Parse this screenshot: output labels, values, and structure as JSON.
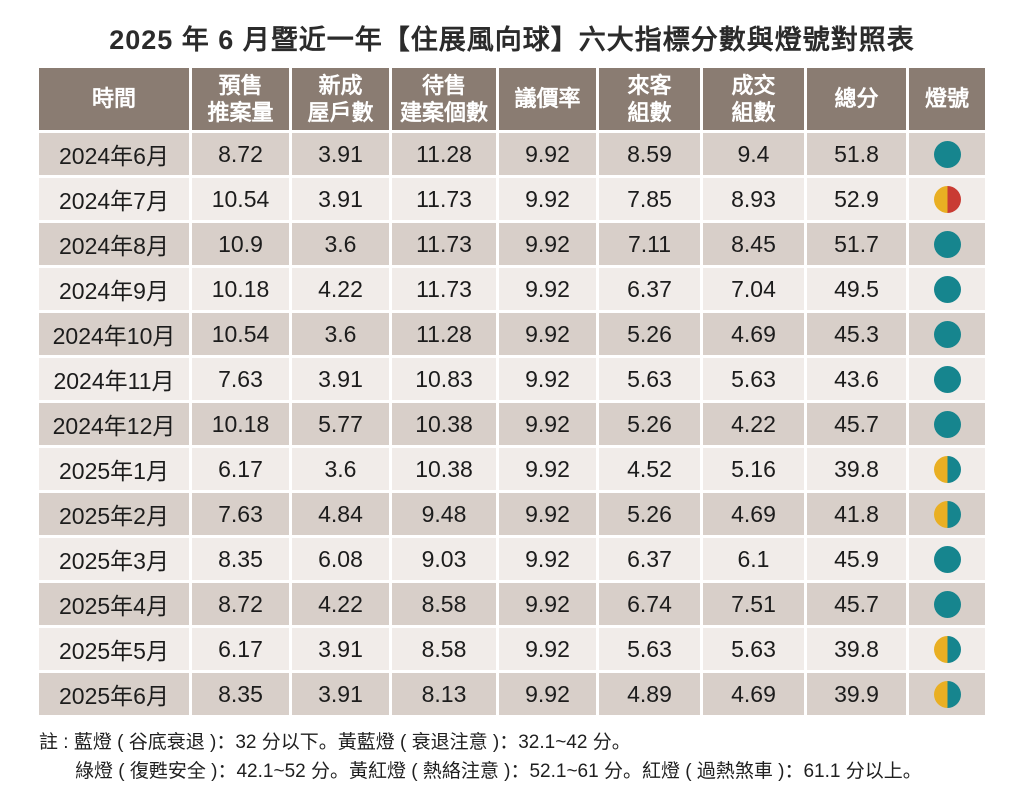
{
  "chart_data": {
    "type": "table",
    "title": "2025 年 6 月暨近一年【住展風向球】六大指標分數與燈號對照表",
    "columns": [
      "時間",
      "預售推案量",
      "新成屋戶數",
      "待售建案個數",
      "議價率",
      "來客組數",
      "成交組數",
      "總分",
      "燈號"
    ],
    "column_header_lines": [
      [
        "時間"
      ],
      [
        "預售",
        "推案量"
      ],
      [
        "新成",
        "屋戶數"
      ],
      [
        "待售",
        "建案個數"
      ],
      [
        "議價率"
      ],
      [
        "來客",
        "組數"
      ],
      [
        "成交",
        "組數"
      ],
      [
        "總分"
      ],
      [
        "燈號"
      ]
    ],
    "rows": [
      {
        "time": "2024年6月",
        "values": [
          8.72,
          3.91,
          11.28,
          9.92,
          8.59,
          9.4,
          51.8
        ],
        "light": "green"
      },
      {
        "time": "2024年7月",
        "values": [
          10.54,
          3.91,
          11.73,
          9.92,
          7.85,
          8.93,
          52.9
        ],
        "light": "yellow_red"
      },
      {
        "time": "2024年8月",
        "values": [
          10.9,
          3.6,
          11.73,
          9.92,
          7.11,
          8.45,
          51.7
        ],
        "light": "green"
      },
      {
        "time": "2024年9月",
        "values": [
          10.18,
          4.22,
          11.73,
          9.92,
          6.37,
          7.04,
          49.5
        ],
        "light": "green"
      },
      {
        "time": "2024年10月",
        "values": [
          10.54,
          3.6,
          11.28,
          9.92,
          5.26,
          4.69,
          45.3
        ],
        "light": "green"
      },
      {
        "time": "2024年11月",
        "values": [
          7.63,
          3.91,
          10.83,
          9.92,
          5.63,
          5.63,
          43.6
        ],
        "light": "green"
      },
      {
        "time": "2024年12月",
        "values": [
          10.18,
          5.77,
          10.38,
          9.92,
          5.26,
          4.22,
          45.7
        ],
        "light": "green"
      },
      {
        "time": "2025年1月",
        "values": [
          6.17,
          3.6,
          10.38,
          9.92,
          4.52,
          5.16,
          39.8
        ],
        "light": "yellow_blue"
      },
      {
        "time": "2025年2月",
        "values": [
          7.63,
          4.84,
          9.48,
          9.92,
          5.26,
          4.69,
          41.8
        ],
        "light": "yellow_blue"
      },
      {
        "time": "2025年3月",
        "values": [
          8.35,
          6.08,
          9.03,
          9.92,
          6.37,
          6.1,
          45.9
        ],
        "light": "green"
      },
      {
        "time": "2025年4月",
        "values": [
          8.72,
          4.22,
          8.58,
          9.92,
          6.74,
          7.51,
          45.7
        ],
        "light": "green"
      },
      {
        "time": "2025年5月",
        "values": [
          6.17,
          3.91,
          8.58,
          9.92,
          5.63,
          5.63,
          39.8
        ],
        "light": "yellow_blue"
      },
      {
        "time": "2025年6月",
        "values": [
          8.35,
          3.91,
          8.13,
          9.92,
          4.89,
          4.69,
          39.9
        ],
        "light": "yellow_blue"
      }
    ],
    "lights": {
      "green": {
        "label": "綠燈",
        "style": "solid",
        "colors": [
          "#16858e"
        ]
      },
      "yellow_red": {
        "label": "黃紅燈",
        "style": "split",
        "colors": [
          "#e9af23",
          "#c93b33"
        ]
      },
      "yellow_blue": {
        "label": "黃藍燈",
        "style": "split",
        "colors": [
          "#e9af23",
          "#16858e"
        ]
      }
    }
  },
  "footnotes": [
    "註 : 藍燈 ( 谷底衰退 )：32 分以下。黃藍燈 ( 衰退注意 )：32.1~42 分。",
    "綠燈 ( 復甦安全 )：42.1~52 分。黃紅燈 ( 熱絡注意 )：52.1~61 分。紅燈 ( 過熱煞車 )：61.1 分以上。"
  ]
}
